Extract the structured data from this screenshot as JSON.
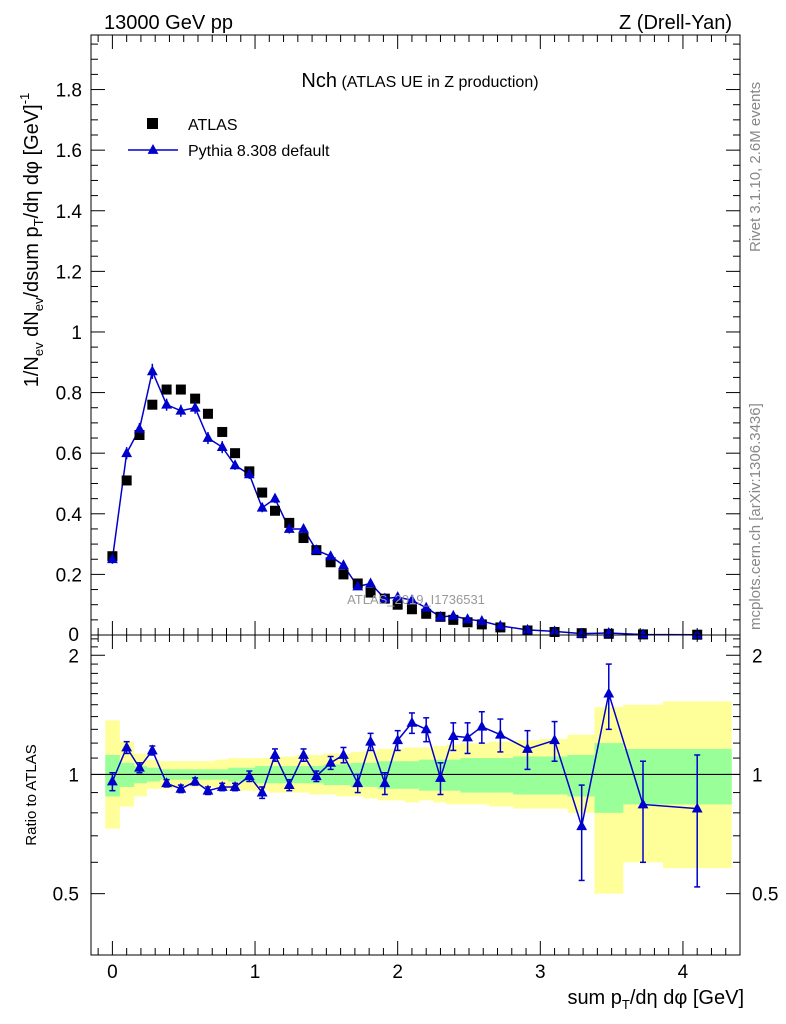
{
  "header": {
    "left": "13000 GeV pp",
    "right": "Z (Drell-Yan)"
  },
  "side_labels": {
    "rivet": "Rivet 3.1.10,  2.6M events",
    "mcplots": "mcplots.cern.ch [arXiv:1306.3436]"
  },
  "chart_data": [
    {
      "type": "scatter",
      "panel": "main",
      "title_main": "Nch",
      "title_sub": "(ATLAS UE in Z production)",
      "watermark": "ATLAS_2019_I1736531",
      "ylabel": "1/N_ev dN_ev/dsum p_T/dη dφ [GeV]^-1",
      "xlabel": "sum p_T/dη dφ [GeV]",
      "xlim": [
        -0.15,
        4.4
      ],
      "ylim": [
        0,
        1.98
      ],
      "grid": false,
      "legend_position": "top-left",
      "y_ticks": [
        "0.2",
        "0.4",
        "0.6",
        "0.8",
        "1",
        "1.2",
        "1.4",
        "1.6",
        "1.8"
      ],
      "series": [
        {
          "name": "ATLAS",
          "color": "#000000",
          "marker": "square",
          "x": [
            0.0,
            0.1,
            0.19,
            0.28,
            0.38,
            0.48,
            0.58,
            0.67,
            0.77,
            0.86,
            0.96,
            1.05,
            1.14,
            1.24,
            1.34,
            1.43,
            1.53,
            1.62,
            1.72,
            1.81,
            1.91,
            2.0,
            2.1,
            2.2,
            2.3,
            2.39,
            2.49,
            2.59,
            2.72,
            2.91,
            3.1,
            3.29,
            3.48,
            3.72,
            4.1
          ],
          "y": [
            0.26,
            0.51,
            0.66,
            0.76,
            0.81,
            0.81,
            0.78,
            0.73,
            0.67,
            0.6,
            0.54,
            0.47,
            0.41,
            0.37,
            0.32,
            0.28,
            0.24,
            0.2,
            0.17,
            0.14,
            0.12,
            0.1,
            0.085,
            0.07,
            0.06,
            0.05,
            0.042,
            0.035,
            0.025,
            0.015,
            0.01,
            0.006,
            0.004,
            0.002,
            0.001
          ]
        },
        {
          "name": "Pythia 8.308 default",
          "color": "#0000cc",
          "marker": "triangle",
          "x": [
            0.0,
            0.1,
            0.19,
            0.28,
            0.38,
            0.48,
            0.58,
            0.67,
            0.77,
            0.86,
            0.96,
            1.05,
            1.14,
            1.24,
            1.34,
            1.43,
            1.53,
            1.62,
            1.72,
            1.81,
            1.91,
            2.0,
            2.1,
            2.2,
            2.3,
            2.39,
            2.49,
            2.59,
            2.72,
            2.91,
            3.1,
            3.29,
            3.48,
            3.72,
            4.1
          ],
          "y": [
            0.25,
            0.6,
            0.68,
            0.87,
            0.76,
            0.74,
            0.75,
            0.65,
            0.62,
            0.56,
            0.53,
            0.42,
            0.45,
            0.35,
            0.35,
            0.28,
            0.26,
            0.23,
            0.16,
            0.17,
            0.12,
            0.125,
            0.115,
            0.09,
            0.06,
            0.063,
            0.052,
            0.046,
            0.03,
            0.017,
            0.012,
            0.0045,
            0.0064,
            0.0017,
            0.0008
          ],
          "yerr": [
            0.015,
            0.02,
            0.02,
            0.025,
            0.02,
            0.02,
            0.02,
            0.02,
            0.02,
            0.015,
            0.015,
            0.015,
            0.015,
            0.015,
            0.015,
            0.012,
            0.01,
            0.01,
            0.01,
            0.01,
            0.008,
            0.008,
            0.007,
            0.006,
            0.005,
            0.005,
            0.004,
            0.004,
            0.003,
            0.002,
            0.002,
            0.001,
            0.001,
            0.0004,
            0.0002
          ]
        }
      ]
    },
    {
      "type": "scatter",
      "panel": "ratio",
      "ylabel": "Ratio to ATLAS",
      "xlim": [
        -0.15,
        4.4
      ],
      "ylim": [
        0.35,
        2.25
      ],
      "y_ticks": [
        "0.5",
        "1",
        "2"
      ],
      "x_ticks": [
        "0",
        "1",
        "2",
        "3",
        "4"
      ],
      "band_colors": {
        "inner": "#99ff99",
        "outer": "#ffff99"
      },
      "band_edges": [
        -0.05,
        0.05,
        0.15,
        0.24,
        0.33,
        0.43,
        0.53,
        0.62,
        0.72,
        0.81,
        0.91,
        1.0,
        1.1,
        1.19,
        1.29,
        1.38,
        1.48,
        1.57,
        1.67,
        1.76,
        1.86,
        1.95,
        2.05,
        2.15,
        2.25,
        2.34,
        2.44,
        2.54,
        2.64,
        2.81,
        3.0,
        3.19,
        3.38,
        3.58,
        3.86,
        4.34
      ],
      "band_inner_lo": [
        0.88,
        0.93,
        0.95,
        0.96,
        0.97,
        0.97,
        0.97,
        0.97,
        0.97,
        0.96,
        0.96,
        0.95,
        0.95,
        0.95,
        0.95,
        0.95,
        0.94,
        0.94,
        0.93,
        0.93,
        0.92,
        0.92,
        0.92,
        0.91,
        0.91,
        0.91,
        0.9,
        0.9,
        0.9,
        0.89,
        0.89,
        0.88,
        0.8,
        0.84,
        0.84
      ],
      "band_inner_hi": [
        1.12,
        1.07,
        1.05,
        1.04,
        1.03,
        1.03,
        1.03,
        1.03,
        1.03,
        1.04,
        1.04,
        1.05,
        1.05,
        1.05,
        1.05,
        1.05,
        1.06,
        1.06,
        1.07,
        1.07,
        1.08,
        1.08,
        1.08,
        1.09,
        1.09,
        1.09,
        1.1,
        1.1,
        1.1,
        1.11,
        1.11,
        1.12,
        1.2,
        1.16,
        1.16
      ],
      "band_outer_lo": [
        0.73,
        0.83,
        0.88,
        0.92,
        0.92,
        0.93,
        0.93,
        0.93,
        0.92,
        0.91,
        0.91,
        0.91,
        0.9,
        0.9,
        0.9,
        0.89,
        0.89,
        0.88,
        0.88,
        0.87,
        0.86,
        0.86,
        0.85,
        0.86,
        0.85,
        0.84,
        0.84,
        0.84,
        0.83,
        0.82,
        0.82,
        0.8,
        0.5,
        0.6,
        0.58
      ],
      "band_outer_hi": [
        1.37,
        1.21,
        1.13,
        1.09,
        1.08,
        1.08,
        1.08,
        1.08,
        1.09,
        1.1,
        1.1,
        1.1,
        1.11,
        1.11,
        1.12,
        1.12,
        1.13,
        1.13,
        1.14,
        1.15,
        1.16,
        1.16,
        1.17,
        1.17,
        1.18,
        1.19,
        1.2,
        1.2,
        1.21,
        1.22,
        1.23,
        1.26,
        1.48,
        1.5,
        1.53
      ],
      "series": [
        {
          "name": "Pythia 8.308 default",
          "color": "#0000cc",
          "x": [
            0.0,
            0.1,
            0.19,
            0.28,
            0.38,
            0.48,
            0.58,
            0.67,
            0.77,
            0.86,
            0.96,
            1.05,
            1.14,
            1.24,
            1.34,
            1.43,
            1.53,
            1.62,
            1.72,
            1.81,
            1.91,
            2.0,
            2.1,
            2.2,
            2.3,
            2.39,
            2.49,
            2.59,
            2.72,
            2.91,
            3.1,
            3.29,
            3.48,
            3.72,
            4.1
          ],
          "y": [
            0.96,
            1.17,
            1.04,
            1.15,
            0.95,
            0.92,
            0.96,
            0.91,
            0.93,
            0.93,
            0.99,
            0.9,
            1.12,
            0.94,
            1.12,
            0.99,
            1.07,
            1.12,
            0.95,
            1.21,
            0.95,
            1.22,
            1.35,
            1.3,
            0.98,
            1.25,
            1.24,
            1.32,
            1.26,
            1.16,
            1.22,
            0.74,
            1.6,
            0.84,
            0.82
          ],
          "yerr": [
            0.05,
            0.04,
            0.03,
            0.03,
            0.02,
            0.02,
            0.02,
            0.02,
            0.02,
            0.02,
            0.03,
            0.03,
            0.04,
            0.03,
            0.04,
            0.03,
            0.04,
            0.05,
            0.05,
            0.06,
            0.06,
            0.07,
            0.08,
            0.09,
            0.09,
            0.1,
            0.11,
            0.12,
            0.12,
            0.13,
            0.14,
            0.2,
            0.3,
            0.24,
            0.3
          ]
        }
      ]
    }
  ]
}
